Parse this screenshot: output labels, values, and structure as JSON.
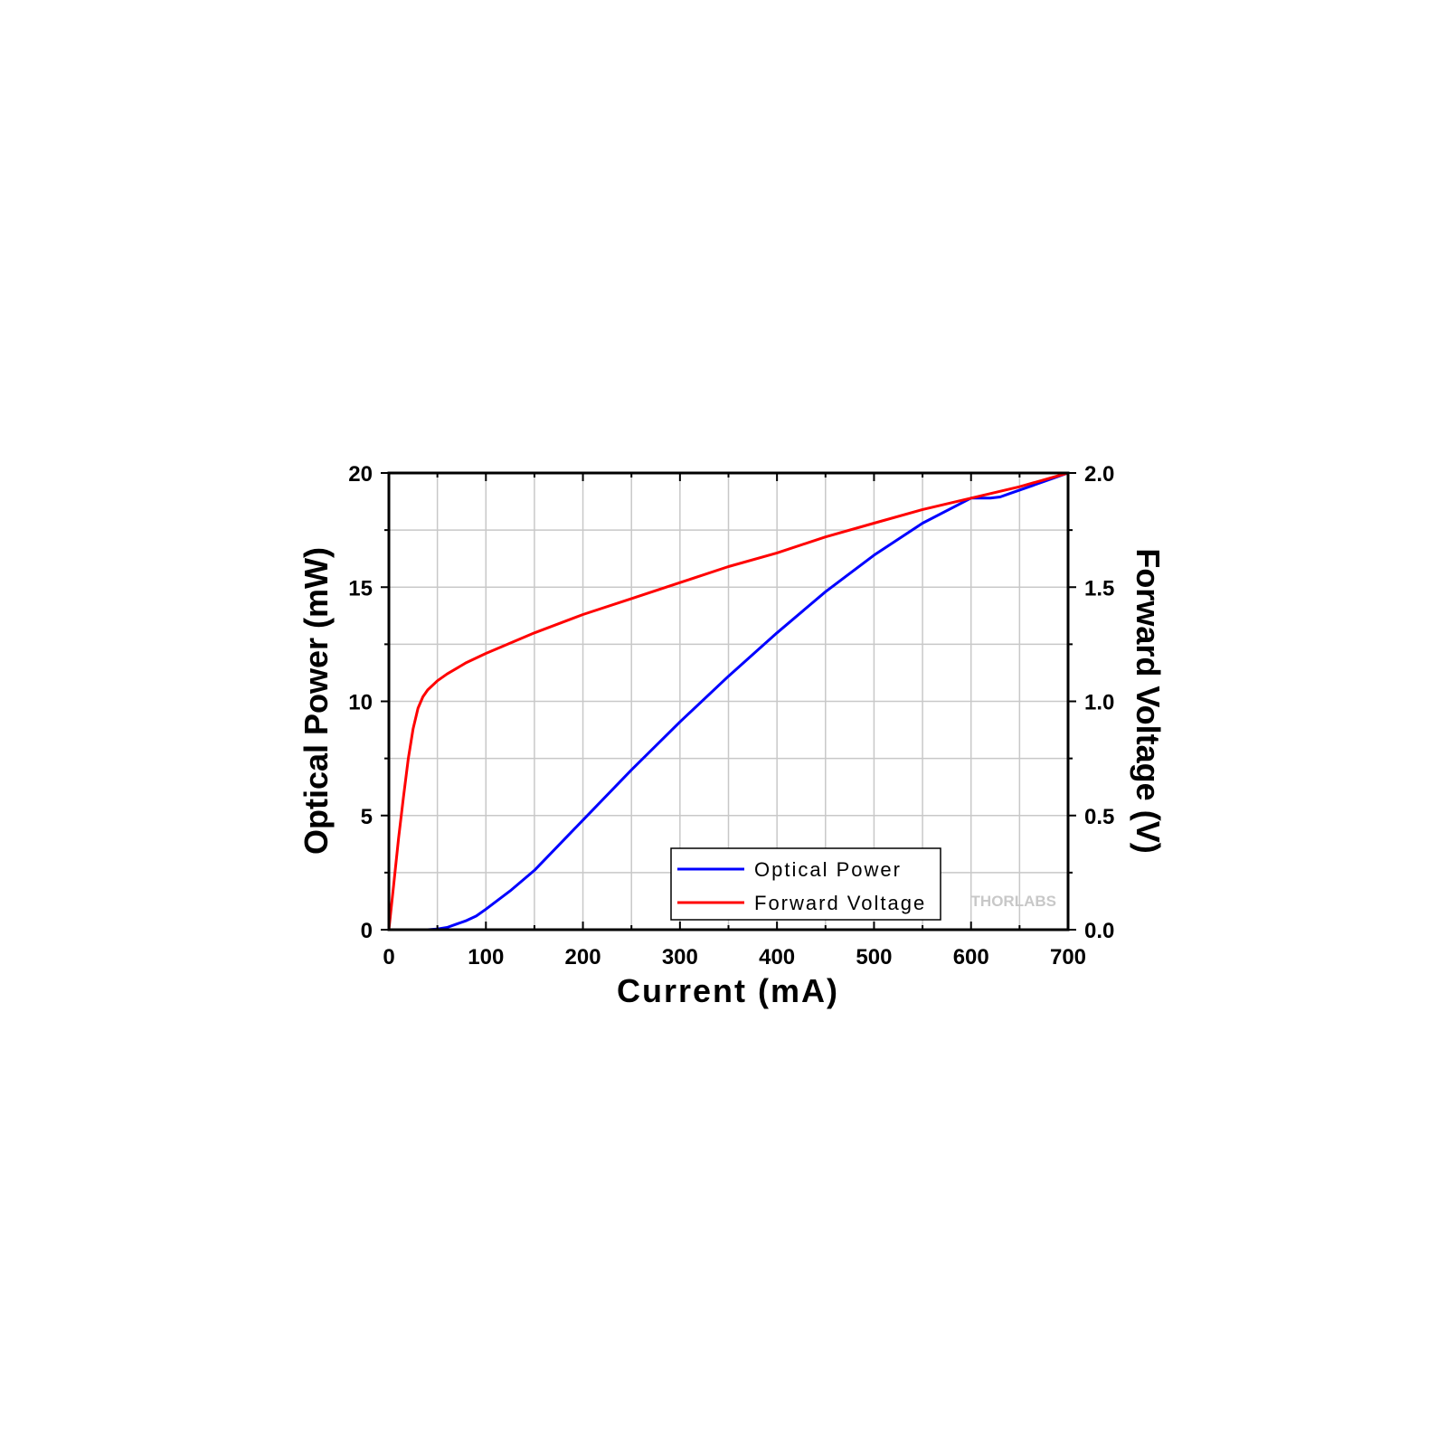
{
  "chart_data": {
    "type": "line",
    "xlabel": "Current (mA)",
    "ylabel": "Optical Power (mW)",
    "y2label": "Forward Voltage (V)",
    "xlim": [
      0,
      700
    ],
    "ylim": [
      0,
      20
    ],
    "y2lim": [
      0,
      2
    ],
    "xticks": [
      "0",
      "100",
      "200",
      "300",
      "400",
      "500",
      "600",
      "700"
    ],
    "yticks": [
      "0",
      "5",
      "10",
      "15",
      "20"
    ],
    "y2ticks": [
      "0.0",
      "0.5",
      "1.0",
      "1.5",
      "2.0"
    ],
    "grid": true,
    "legend_position": "bottom-center",
    "series": [
      {
        "name": "Optical Power",
        "axis": "left",
        "color": "#0000ff",
        "x": [
          40,
          50,
          60,
          70,
          80,
          90,
          100,
          125,
          150,
          175,
          200,
          250,
          300,
          350,
          400,
          450,
          500,
          550,
          600,
          620,
          630,
          640,
          660,
          680,
          700
        ],
        "y": [
          0,
          0.03,
          0.1,
          0.25,
          0.4,
          0.6,
          0.9,
          1.7,
          2.6,
          3.7,
          4.8,
          7.0,
          9.1,
          11.1,
          13.0,
          14.8,
          16.4,
          17.8,
          18.9,
          18.9,
          18.95,
          19.1,
          19.4,
          19.7,
          20.0
        ]
      },
      {
        "name": "Forward Voltage",
        "axis": "right",
        "color": "#ff0000",
        "x": [
          0,
          5,
          10,
          15,
          20,
          25,
          30,
          35,
          40,
          45,
          50,
          60,
          80,
          100,
          150,
          200,
          250,
          300,
          350,
          400,
          450,
          500,
          550,
          600,
          650,
          700
        ],
        "y": [
          0,
          0.2,
          0.4,
          0.58,
          0.75,
          0.88,
          0.97,
          1.02,
          1.05,
          1.07,
          1.09,
          1.12,
          1.17,
          1.21,
          1.3,
          1.38,
          1.45,
          1.52,
          1.59,
          1.65,
          1.72,
          1.78,
          1.84,
          1.89,
          1.94,
          2.0
        ]
      }
    ]
  },
  "watermark": "THORLABS"
}
